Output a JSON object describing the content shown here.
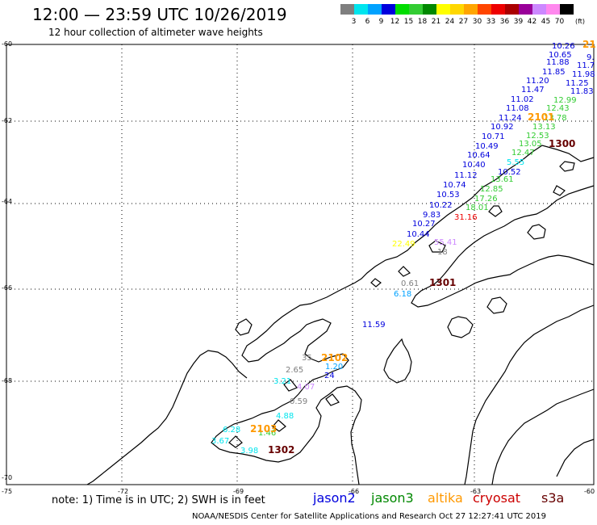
{
  "header": {
    "title": "12:00 — 23:59 UTC 10/26/2019",
    "subtitle": "12 hour collection of altimeter wave heights"
  },
  "color_scale": {
    "unit": "(ft)",
    "bins": [
      {
        "label": "3",
        "color": "#7f7f7f"
      },
      {
        "label": "6",
        "color": "#00e5ee"
      },
      {
        "label": "9",
        "color": "#00a2ff"
      },
      {
        "label": "12",
        "color": "#0000dd"
      },
      {
        "label": "15",
        "color": "#00dd00"
      },
      {
        "label": "18",
        "color": "#33cc33"
      },
      {
        "label": "21",
        "color": "#008800"
      },
      {
        "label": "24",
        "color": "#ffff00"
      },
      {
        "label": "27",
        "color": "#ffd700"
      },
      {
        "label": "30",
        "color": "#ffa500"
      },
      {
        "label": "33",
        "color": "#ff4500"
      },
      {
        "label": "36",
        "color": "#ee0000"
      },
      {
        "label": "39",
        "color": "#aa0000"
      },
      {
        "label": "42",
        "color": "#990099"
      },
      {
        "label": "45",
        "color": "#cc88ff"
      },
      {
        "label": "70",
        "color": "#ff88ee"
      },
      {
        "label": "",
        "color": "#000000"
      }
    ]
  },
  "axes": {
    "lat_labels": [
      "-60",
      "-62",
      "-64",
      "-66",
      "-68",
      "-70"
    ],
    "lon_labels": [
      "-75",
      "-72",
      "-69",
      "-66",
      "-63",
      "-60"
    ]
  },
  "satellites": [
    {
      "name": "jason2",
      "color": "#0000dd"
    },
    {
      "name": "jason3",
      "color": "#008800"
    },
    {
      "name": "altika",
      "color": "#ff9900"
    },
    {
      "name": "cryosat",
      "color": "#cc0000"
    },
    {
      "name": "s3a",
      "color": "#660000"
    }
  ],
  "passes": [
    {
      "label": "21",
      "color": "#ff9900"
    },
    {
      "label": "2101",
      "color": "#ff9900"
    },
    {
      "label": "1300",
      "color": "#660000"
    },
    {
      "label": "1301",
      "color": "#660000"
    },
    {
      "label": "2102",
      "color": "#ff9900"
    },
    {
      "label": "2103",
      "color": "#ff9900"
    },
    {
      "label": "1302",
      "color": "#660000"
    }
  ],
  "observations": [
    {
      "text": "10.26",
      "color": "#0000dd"
    },
    {
      "text": "10.65",
      "color": "#0000dd"
    },
    {
      "text": "9.",
      "color": "#0000dd"
    },
    {
      "text": "11.7",
      "color": "#0000dd"
    },
    {
      "text": "11.88",
      "color": "#0000dd"
    },
    {
      "text": "11.98",
      "color": "#0000dd"
    },
    {
      "text": "11.85",
      "color": "#0000dd"
    },
    {
      "text": "11.20",
      "color": "#0000dd"
    },
    {
      "text": "11.25",
      "color": "#0000dd"
    },
    {
      "text": "11.47",
      "color": "#0000dd"
    },
    {
      "text": "11.83",
      "color": "#0000dd"
    },
    {
      "text": "11.02",
      "color": "#0000dd"
    },
    {
      "text": "12.99",
      "color": "#33cc33"
    },
    {
      "text": "11.08",
      "color": "#0000dd"
    },
    {
      "text": "12.43",
      "color": "#33cc33"
    },
    {
      "text": "11.24",
      "color": "#0000dd"
    },
    {
      "text": "13.78",
      "color": "#33cc33"
    },
    {
      "text": "10.92",
      "color": "#0000dd"
    },
    {
      "text": "13.13",
      "color": "#33cc33"
    },
    {
      "text": "10.71",
      "color": "#0000dd"
    },
    {
      "text": "12.53",
      "color": "#33cc33"
    },
    {
      "text": "10.49",
      "color": "#0000dd"
    },
    {
      "text": "13.05",
      "color": "#33cc33"
    },
    {
      "text": "10.64",
      "color": "#0000dd"
    },
    {
      "text": "12.47",
      "color": "#33cc33"
    },
    {
      "text": "5.55",
      "color": "#00e5ee"
    },
    {
      "text": "10.40",
      "color": "#0000dd"
    },
    {
      "text": "10.52",
      "color": "#0000dd"
    },
    {
      "text": "11.12",
      "color": "#0000dd"
    },
    {
      "text": "13.61",
      "color": "#33cc33"
    },
    {
      "text": "10.74",
      "color": "#0000dd"
    },
    {
      "text": "12.85",
      "color": "#33cc33"
    },
    {
      "text": "10.53",
      "color": "#0000dd"
    },
    {
      "text": "17.26",
      "color": "#33cc33"
    },
    {
      "text": "10.22",
      "color": "#0000dd"
    },
    {
      "text": "18.01",
      "color": "#33cc33"
    },
    {
      "text": "9.83",
      "color": "#0000dd"
    },
    {
      "text": "31.16",
      "color": "#ee0000"
    },
    {
      "text": "10.27",
      "color": "#0000dd"
    },
    {
      "text": "10.44",
      "color": "#0000dd"
    },
    {
      "text": "22.49",
      "color": "#ffff00"
    },
    {
      "text": "55.41",
      "color": "#cc88ff"
    },
    {
      "text": "18",
      "color": "#7f7f7f"
    },
    {
      "text": "0.61",
      "color": "#7f7f7f"
    },
    {
      "text": "6.18",
      "color": "#00a2ff"
    },
    {
      "text": "11.59",
      "color": "#0000dd"
    },
    {
      "text": "35",
      "color": "#7f7f7f"
    },
    {
      "text": "1.20",
      "color": "#00a2ff"
    },
    {
      "text": "2.65",
      "color": "#7f7f7f"
    },
    {
      "text": "24",
      "color": "#0000dd"
    },
    {
      "text": "3.21",
      "color": "#00e5ee"
    },
    {
      "text": "4.07",
      "color": "#cc88ff"
    },
    {
      "text": "0.59",
      "color": "#7f7f7f"
    },
    {
      "text": "4.88",
      "color": "#00e5ee"
    },
    {
      "text": "6.28",
      "color": "#00e5ee"
    },
    {
      "text": "1.46",
      "color": "#33cc33"
    },
    {
      "text": "3.67",
      "color": "#00e5ee"
    },
    {
      "text": "3.98",
      "color": "#00e5ee"
    }
  ],
  "footer": {
    "note": "note: 1) Time is in UTC; 2) SWH is in feet",
    "credit": "NOAA/NESDIS Center for Satellite Applications and Research   Oct 27 12:27:41 UTC 2019"
  }
}
